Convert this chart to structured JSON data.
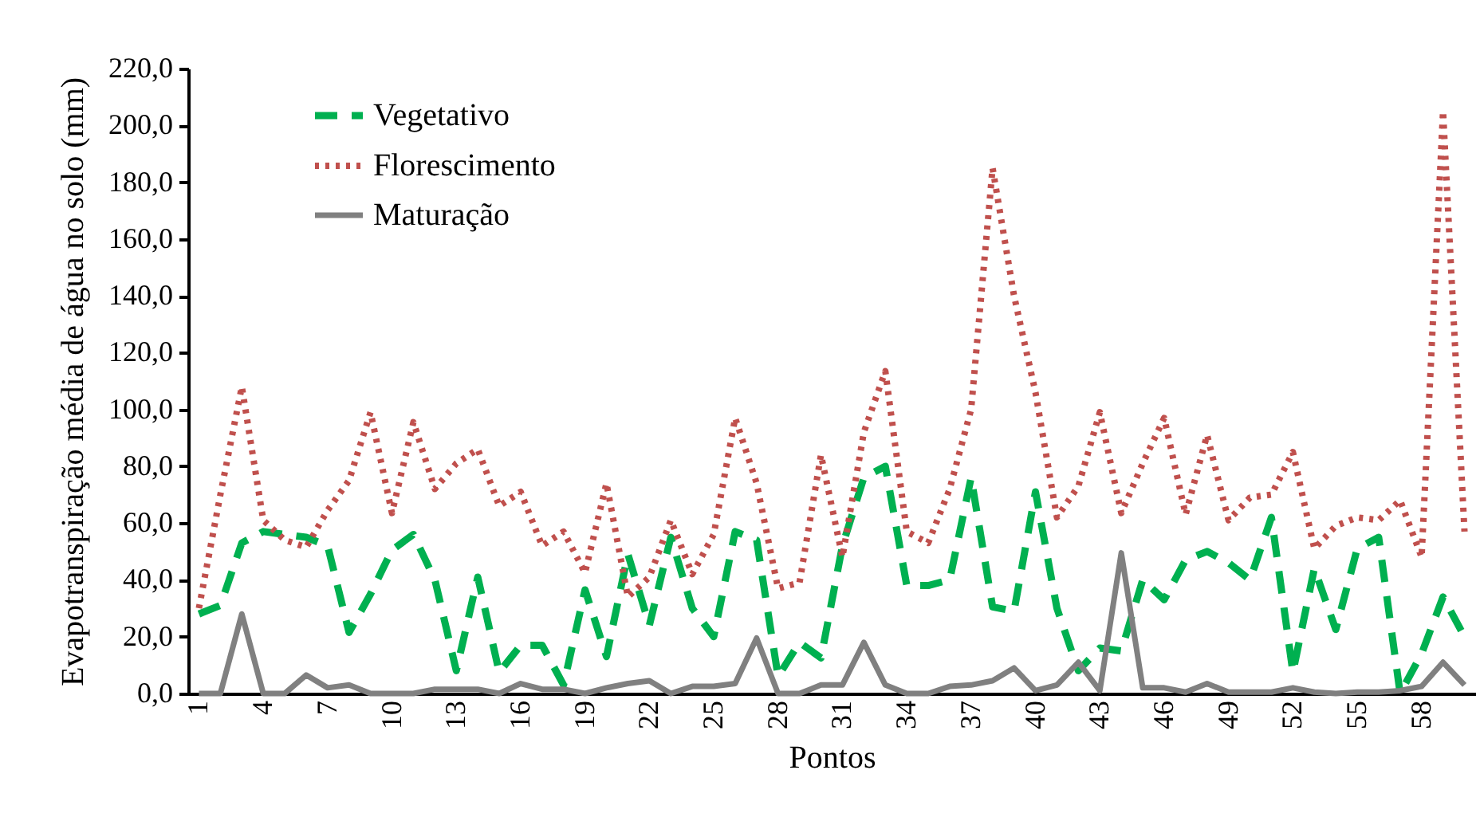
{
  "chart_data": {
    "type": "line",
    "xlabel": "Pontos",
    "ylabel": "Evapotranspiração média de água no solo  (mm)",
    "categories": [
      "1",
      null,
      null,
      "4",
      null,
      null,
      "7",
      null,
      null,
      "10",
      null,
      null,
      "13",
      null,
      null,
      "16",
      null,
      null,
      "19",
      null,
      null,
      "22",
      null,
      null,
      "25",
      null,
      null,
      "28",
      null,
      null,
      "31",
      null,
      null,
      "34",
      null,
      null,
      "37",
      null,
      null,
      "40",
      null,
      null,
      "43",
      null,
      null,
      "46",
      null,
      null,
      "49",
      null,
      null,
      "52",
      null,
      null,
      "55",
      null,
      null,
      "58",
      null,
      null
    ],
    "series": [
      {
        "name": "Vegetativo",
        "color": "#00b050",
        "line_style": "dashed",
        "values": [
          28,
          31,
          53,
          57,
          56,
          55,
          52,
          21.5,
          35,
          50.5,
          56,
          40,
          8,
          41,
          7.5,
          17,
          17,
          3,
          36.5,
          13,
          49,
          24,
          55,
          30,
          20,
          57,
          54,
          6,
          18,
          12.5,
          52,
          76,
          80,
          38,
          38,
          40,
          76,
          30.5,
          29,
          71,
          30,
          8,
          16,
          15,
          40,
          33,
          47,
          50,
          46,
          40,
          62,
          7.5,
          44,
          22.5,
          51,
          55,
          0,
          14,
          34,
          20
        ]
      },
      {
        "name": "Florescimento",
        "color": "#c0504d",
        "line_style": "dotted",
        "values": [
          30,
          70,
          108,
          61,
          54,
          51.5,
          64.5,
          75,
          99,
          63.5,
          95.5,
          72,
          81,
          86,
          66,
          71,
          52,
          57,
          42.5,
          74,
          34,
          41,
          61,
          42,
          56,
          97,
          74,
          37,
          39,
          84,
          48,
          92,
          113.5,
          57,
          53,
          72,
          100,
          185,
          140,
          106,
          62,
          73,
          99,
          63.5,
          81,
          97,
          63,
          91,
          61,
          69,
          70,
          85,
          51,
          59,
          62,
          61,
          68,
          48,
          205,
          57
        ]
      },
      {
        "name": "Maturação",
        "color": "#808080",
        "line_style": "solid",
        "values": [
          0,
          0,
          28,
          0,
          0,
          6.5,
          2,
          3,
          0,
          0,
          0,
          1.5,
          1.5,
          1.5,
          0,
          3.5,
          1.5,
          1.5,
          0,
          2,
          3.5,
          4.5,
          0,
          2.5,
          2.5,
          3.5,
          19.5,
          0,
          0,
          3,
          3,
          18,
          3,
          0,
          0,
          2.5,
          3,
          4.5,
          9,
          1,
          3,
          11,
          1,
          49.5,
          2,
          2,
          0.5,
          3.5,
          0.5,
          0.5,
          0.5,
          2,
          0.5,
          0,
          0.5,
          0.5,
          1,
          2.5,
          11,
          3
        ]
      }
    ],
    "ylim": [
      0,
      220
    ],
    "yticks": [
      {
        "value": 0,
        "label": "0,0"
      },
      {
        "value": 20,
        "label": "20,0"
      },
      {
        "value": 40,
        "label": "40,0"
      },
      {
        "value": 60,
        "label": "60,0"
      },
      {
        "value": 80,
        "label": "80,0"
      },
      {
        "value": 100,
        "label": "100,0"
      },
      {
        "value": 120,
        "label": "120,0"
      },
      {
        "value": 140,
        "label": "140,0"
      },
      {
        "value": 160,
        "label": "160,0"
      },
      {
        "value": 180,
        "label": "180,0"
      },
      {
        "value": 200,
        "label": "200,0"
      },
      {
        "value": 220,
        "label": "220,0"
      }
    ],
    "legend": "top left"
  }
}
